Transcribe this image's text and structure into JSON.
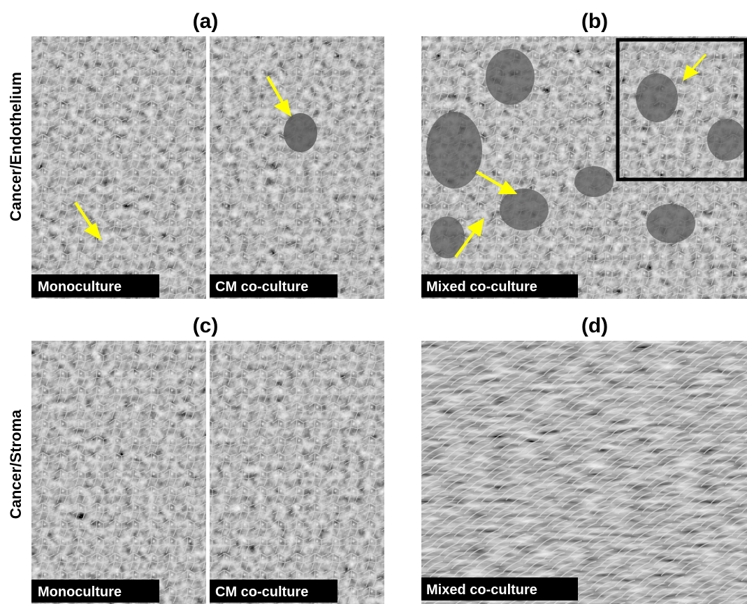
{
  "row_labels": [
    "Cancer/Endothelium",
    "Cancer/Stroma"
  ],
  "panels": [
    {
      "label": "(a)",
      "images": [
        {
          "caption": "Monoculture"
        },
        {
          "caption": "CM co-culture"
        }
      ]
    },
    {
      "label": "(b)",
      "images": [
        {
          "caption": "Mixed co-culture"
        }
      ]
    },
    {
      "label": "(c)",
      "images": [
        {
          "caption": "Monoculture"
        },
        {
          "caption": "CM co-culture"
        }
      ]
    },
    {
      "label": "(d)",
      "images": [
        {
          "caption": "Mixed co-culture"
        }
      ]
    }
  ]
}
